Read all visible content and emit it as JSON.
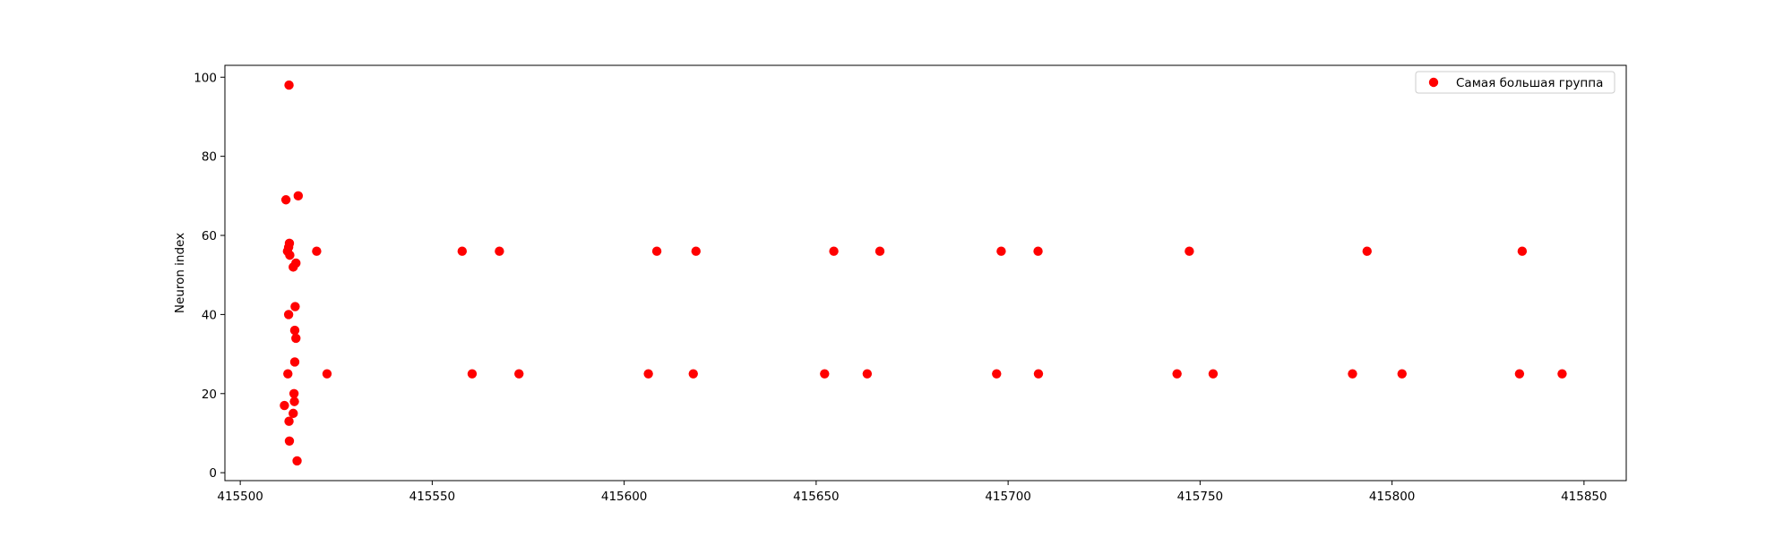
{
  "chart_data": {
    "type": "scatter",
    "title": "",
    "xlabel": "",
    "ylabel": "Neuron index",
    "xlim": [
      415496,
      415861
    ],
    "ylim": [
      -2,
      103
    ],
    "xticks": [
      415500,
      415550,
      415600,
      415650,
      415700,
      415750,
      415800,
      415850
    ],
    "xtick_labels": [
      "415500",
      "415550",
      "415600",
      "415650",
      "415700",
      "415750",
      "415800",
      "415850"
    ],
    "yticks": [
      0,
      20,
      40,
      60,
      80,
      100
    ],
    "ytick_labels": [
      "0",
      "20",
      "40",
      "60",
      "80",
      "100"
    ],
    "grid": false,
    "legend_position": "upper right",
    "series": [
      {
        "name": "Самая большая группа",
        "color": "#ff0000",
        "marker": "circle",
        "points": [
          [
            415512.7,
            98
          ],
          [
            415515.1,
            70
          ],
          [
            415511.9,
            69
          ],
          [
            415512.8,
            58
          ],
          [
            415512.6,
            57
          ],
          [
            415512.3,
            56
          ],
          [
            415512.9,
            55
          ],
          [
            415519.9,
            56
          ],
          [
            415514.5,
            53
          ],
          [
            415513.8,
            52
          ],
          [
            415514.3,
            42
          ],
          [
            415512.6,
            40
          ],
          [
            415514.2,
            36
          ],
          [
            415514.5,
            34
          ],
          [
            415514.2,
            28
          ],
          [
            415512.4,
            25
          ],
          [
            415522.6,
            25
          ],
          [
            415514.0,
            20
          ],
          [
            415514.1,
            18
          ],
          [
            415511.5,
            17
          ],
          [
            415513.8,
            15
          ],
          [
            415512.7,
            13
          ],
          [
            415512.8,
            8
          ],
          [
            415514.8,
            3
          ],
          [
            415557.8,
            56
          ],
          [
            415567.5,
            56
          ],
          [
            415608.5,
            56
          ],
          [
            415618.7,
            56
          ],
          [
            415654.6,
            56
          ],
          [
            415666.6,
            56
          ],
          [
            415698.2,
            56
          ],
          [
            415707.8,
            56
          ],
          [
            415747.2,
            56
          ],
          [
            415793.5,
            56
          ],
          [
            415833.9,
            56
          ],
          [
            415560.4,
            25
          ],
          [
            415572.6,
            25
          ],
          [
            415606.3,
            25
          ],
          [
            415618.0,
            25
          ],
          [
            415652.2,
            25
          ],
          [
            415663.3,
            25
          ],
          [
            415697.0,
            25
          ],
          [
            415707.9,
            25
          ],
          [
            415744.0,
            25
          ],
          [
            415753.4,
            25
          ],
          [
            415789.7,
            25
          ],
          [
            415802.6,
            25
          ],
          [
            415833.2,
            25
          ],
          [
            415844.3,
            25
          ]
        ]
      }
    ]
  }
}
